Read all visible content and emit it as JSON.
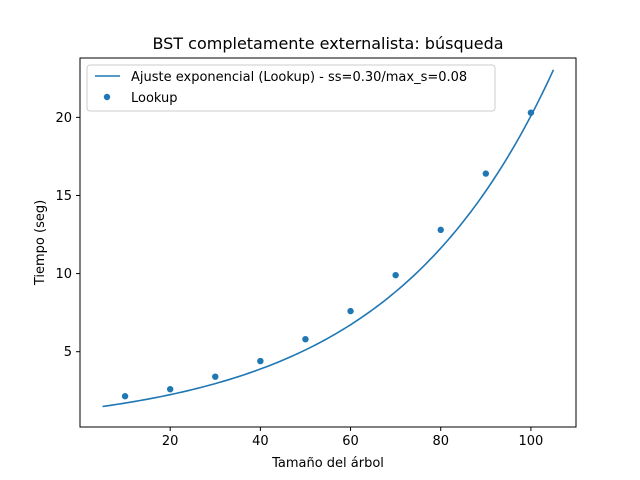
{
  "chart_data": {
    "type": "scatter",
    "title": "BST completamente externalista: búsqueda",
    "xlabel": "Tamaño del árbol",
    "ylabel": "Tiempo (seg)",
    "xlim": [
      0,
      110
    ],
    "ylim": [
      0.18,
      23.8
    ],
    "xticks": [
      20,
      40,
      60,
      80,
      100
    ],
    "yticks": [
      5,
      10,
      15,
      20
    ],
    "grid": false,
    "legend_position": "upper-left",
    "series": [
      {
        "name": "Lookup",
        "kind": "scatter",
        "color": "#1f77b4",
        "x": [
          10,
          20,
          30,
          40,
          50,
          60,
          70,
          80,
          90,
          100
        ],
        "y": [
          2.15,
          2.6,
          3.4,
          4.4,
          5.8,
          7.6,
          9.9,
          12.8,
          16.4,
          20.3
        ]
      },
      {
        "name": "Ajuste exponencial (Lookup) - ss=0.30/max_s=0.08",
        "kind": "line",
        "color": "#1f77b4",
        "x_range": [
          5,
          105
        ],
        "fit": {
          "a": 1.3016,
          "b": 0.02737
        }
      }
    ]
  }
}
